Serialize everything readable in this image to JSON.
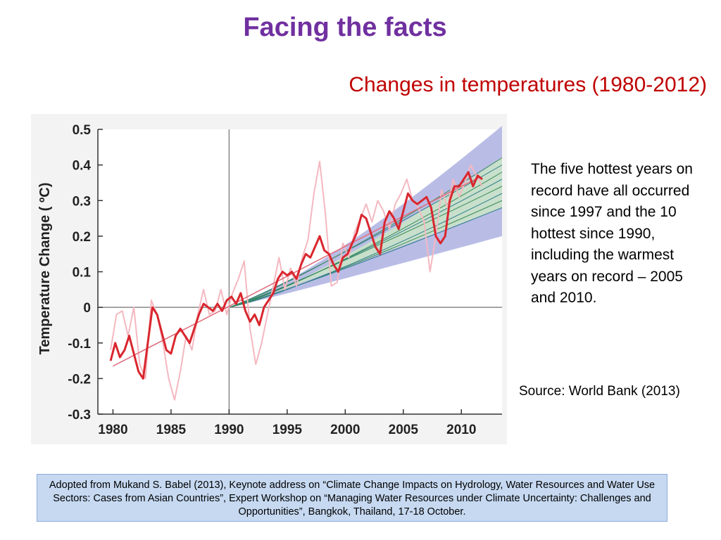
{
  "slide": {
    "title": "Facing the facts",
    "subtitle": "Changes in temperatures (1980-2012)",
    "fact_text": "The five hottest years on record have all occurred since 1997 and the 10 hottest since 1990, including the warmest years on record – 2005 and 2010.",
    "source": "Source: World Bank (2013)",
    "citation": "Adopted from Mukand S. Babel (2013), Keynote address on “Climate Change Impacts on Hydrology, Water Resources and Water Use Sectors: Cases from Asian Countries”, Expert Workshop on “Managing Water Resources under Climate Uncertainty: Challenges and Opportunities”, Bangkok, Thailand, 17-18 October."
  },
  "colors": {
    "smoothed_series": "#d9262e",
    "raw_series": "#f4b8c0",
    "trend_line": "#e07080",
    "projection_band": "#b9bde6",
    "projection_inner": "#cce9c4",
    "projection_lines": "#2e7d8c",
    "ref_line": "#888888"
  },
  "chart_data": {
    "type": "line",
    "title": "",
    "xlabel": "",
    "ylabel": "Temperature Change ( ºC)",
    "xlim": [
      1978.7,
      2013.5
    ],
    "ylim": [
      -0.3,
      0.5
    ],
    "x_ticks": [
      1980,
      1985,
      1990,
      1995,
      2000,
      2005,
      2010
    ],
    "y_ticks": [
      -0.3,
      -0.2,
      -0.1,
      0,
      0.1,
      0.2,
      0.3,
      0.4,
      0.5
    ],
    "y_tick_labels": [
      "-0.3",
      "-0.2",
      "-0.1",
      "0",
      "0.1",
      "0.2",
      "0.3",
      "0.4",
      "0.5"
    ],
    "grid": false,
    "reference_lines": {
      "x": 1990,
      "y": 0
    },
    "series": [
      {
        "style": "smoothed",
        "x": [
          1979.8,
          1980.2,
          1980.6,
          1981.0,
          1981.4,
          1981.8,
          1982.2,
          1982.6,
          1983.0,
          1983.4,
          1983.8,
          1984.2,
          1984.6,
          1985.0,
          1985.4,
          1985.8,
          1986.2,
          1986.6,
          1987.0,
          1987.4,
          1987.8,
          1988.2,
          1988.6,
          1989.0,
          1989.4,
          1989.8,
          1990.2,
          1990.6,
          1991.0,
          1991.4,
          1991.8,
          1992.2,
          1992.6,
          1993.0,
          1993.4,
          1993.8,
          1994.2,
          1994.6,
          1995.0,
          1995.4,
          1995.8,
          1996.2,
          1996.6,
          1997.0,
          1997.4,
          1997.8,
          1998.2,
          1998.6,
          1999.0,
          1999.4,
          1999.8,
          2000.2,
          2000.6,
          2001.0,
          2001.4,
          2001.8,
          2002.2,
          2002.6,
          2003.0,
          2003.4,
          2003.8,
          2004.2,
          2004.6,
          2005.0,
          2005.4,
          2005.8,
          2006.2,
          2006.6,
          2007.0,
          2007.4,
          2007.8,
          2008.2,
          2008.6,
          2009.0,
          2009.4,
          2009.8,
          2010.2,
          2010.6,
          2011.0,
          2011.4,
          2011.8
        ],
        "y": [
          -0.15,
          -0.1,
          -0.14,
          -0.12,
          -0.08,
          -0.13,
          -0.18,
          -0.2,
          -0.1,
          0.0,
          -0.02,
          -0.07,
          -0.12,
          -0.13,
          -0.08,
          -0.06,
          -0.08,
          -0.1,
          -0.06,
          -0.02,
          0.01,
          0.0,
          -0.01,
          0.01,
          -0.01,
          0.02,
          0.03,
          0.01,
          0.04,
          -0.01,
          -0.04,
          -0.02,
          -0.05,
          0.0,
          0.02,
          0.04,
          0.08,
          0.1,
          0.09,
          0.1,
          0.08,
          0.12,
          0.15,
          0.14,
          0.17,
          0.2,
          0.16,
          0.15,
          0.12,
          0.1,
          0.14,
          0.15,
          0.18,
          0.21,
          0.26,
          0.25,
          0.21,
          0.17,
          0.15,
          0.24,
          0.27,
          0.25,
          0.22,
          0.27,
          0.32,
          0.3,
          0.29,
          0.3,
          0.31,
          0.28,
          0.2,
          0.18,
          0.2,
          0.3,
          0.34,
          0.34,
          0.36,
          0.38,
          0.34,
          0.37,
          0.36
        ]
      },
      {
        "style": "raw",
        "x": [
          1979.8,
          1980.3,
          1980.8,
          1981.3,
          1981.8,
          1982.3,
          1982.8,
          1983.3,
          1983.8,
          1984.3,
          1984.8,
          1985.3,
          1985.8,
          1986.3,
          1986.8,
          1987.3,
          1987.8,
          1988.3,
          1988.8,
          1989.3,
          1989.8,
          1990.3,
          1990.8,
          1991.3,
          1991.8,
          1992.3,
          1992.8,
          1993.3,
          1993.8,
          1994.3,
          1994.8,
          1995.3,
          1995.8,
          1996.3,
          1996.8,
          1997.3,
          1997.8,
          1998.3,
          1998.8,
          1999.3,
          1999.8,
          2000.3,
          2000.8,
          2001.3,
          2001.8,
          2002.3,
          2002.8,
          2003.3,
          2003.8,
          2004.3,
          2004.8,
          2005.3,
          2005.8,
          2006.3,
          2006.8,
          2007.3,
          2007.8,
          2008.3,
          2008.8,
          2009.3,
          2009.8,
          2010.3,
          2010.8,
          2011.3,
          2011.8
        ],
        "y": [
          -0.12,
          -0.02,
          -0.01,
          -0.08,
          0.0,
          -0.16,
          -0.2,
          0.02,
          -0.02,
          -0.1,
          -0.2,
          -0.26,
          -0.18,
          -0.08,
          -0.12,
          -0.02,
          0.05,
          -0.02,
          -0.01,
          0.05,
          -0.02,
          0.04,
          0.08,
          0.13,
          -0.06,
          -0.16,
          -0.1,
          -0.02,
          0.06,
          0.14,
          0.05,
          0.11,
          0.06,
          0.14,
          0.19,
          0.32,
          0.41,
          0.26,
          0.06,
          0.07,
          0.18,
          0.14,
          0.21,
          0.25,
          0.29,
          0.24,
          0.3,
          0.27,
          0.22,
          0.29,
          0.32,
          0.36,
          0.3,
          0.28,
          0.24,
          0.1,
          0.2,
          0.33,
          0.28,
          0.36,
          0.31,
          0.35,
          0.4,
          0.37,
          0.34
        ]
      },
      {
        "style": "trend",
        "x": [
          1980,
          2011.5
        ],
        "y": [
          -0.165,
          0.365
        ]
      }
    ],
    "projection": {
      "x": [
        1990,
        2013.5
      ],
      "band_upper": [
        0.0,
        0.51
      ],
      "band_lower": [
        0.0,
        0.2
      ],
      "inner_upper": [
        0.0,
        0.42
      ],
      "inner_lower": [
        0.0,
        0.28
      ],
      "line_ends": [
        0.28,
        0.3,
        0.32,
        0.34,
        0.36,
        0.38,
        0.4,
        0.42
      ]
    }
  }
}
